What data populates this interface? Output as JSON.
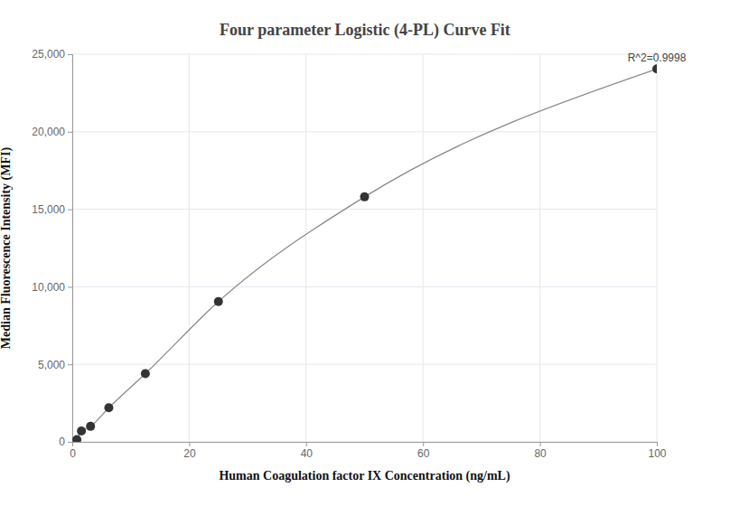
{
  "chart_data": {
    "type": "line",
    "title": "Four parameter Logistic (4-PL) Curve Fit",
    "x_label": "Human Coagulation factor IX Concentration (ng/mL)",
    "y_label": "Median Fluorescence Intensity (MFI)",
    "annotation": "R^2=0.9998",
    "x": [
      0.78125,
      1.5625,
      3.125,
      6.25,
      12.5,
      25,
      50,
      100
    ],
    "series": [
      {
        "color": "#888888",
        "marker": "circle",
        "values": [
          150,
          700,
          1000,
          2200,
          4400,
          9050,
          15800,
          24050
        ]
      }
    ],
    "xlim": [
      0,
      100
    ],
    "xticks": [
      0,
      20,
      40,
      60,
      80,
      100
    ],
    "ylim": [
      0,
      25000
    ],
    "yticks": [
      0,
      {
        "value": 5000,
        "label": "5,000"
      },
      {
        "value": 10000,
        "label": "10,000"
      },
      {
        "value": 15000,
        "label": "15,000"
      },
      {
        "value": 20000,
        "label": "20,000"
      },
      {
        "value": 25000,
        "label": "25,000"
      }
    ],
    "grid": true
  }
}
